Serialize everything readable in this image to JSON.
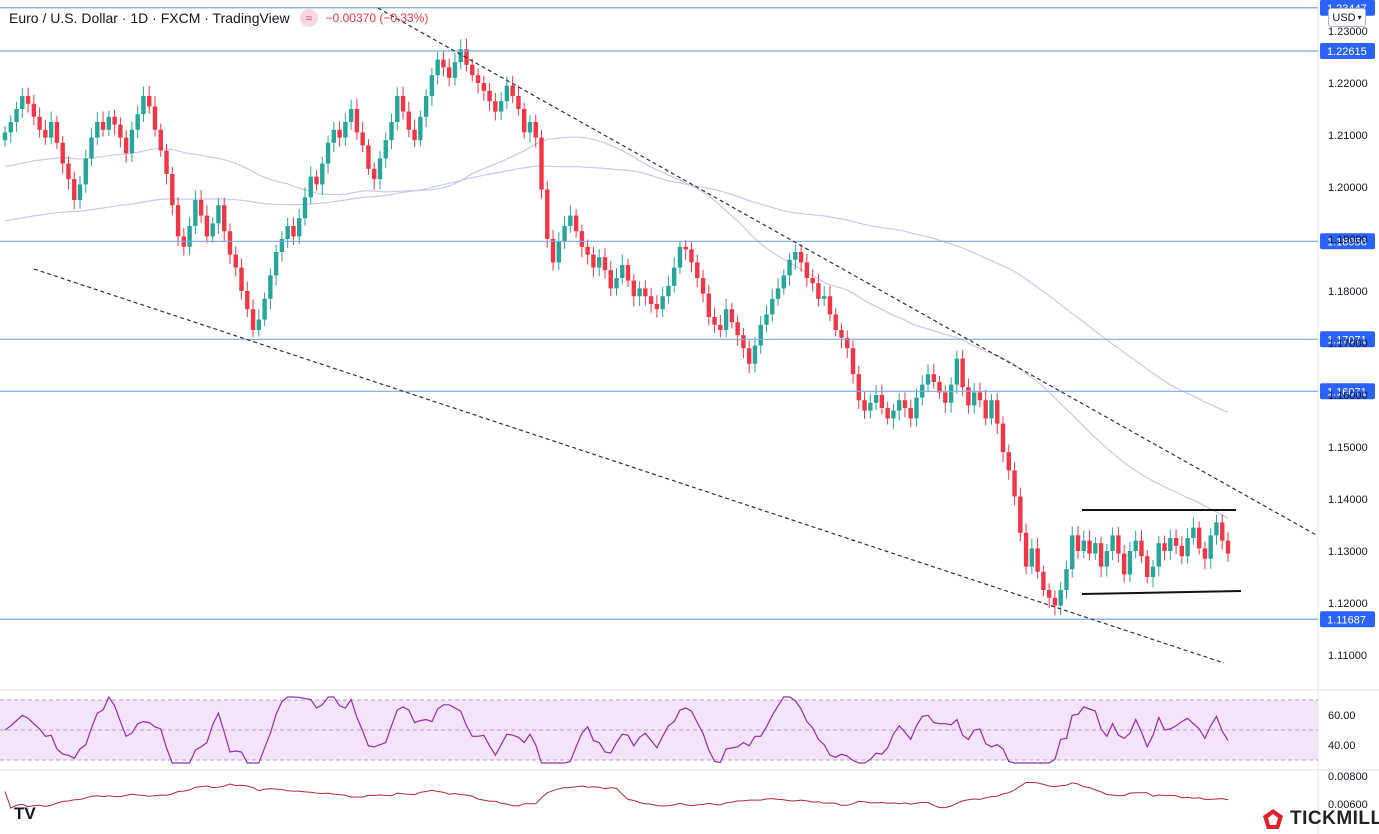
{
  "header": {
    "symbol": "Euro / U.S. Dollar · 1D · FXCM · TradingView",
    "change": "−0.00370 (−0.33%)"
  },
  "currency_selector": "USD",
  "brand": {
    "name": "TICKMILL",
    "tv_logo": "TV"
  },
  "colors": {
    "up": "#26a69a",
    "down": "#f23645",
    "hline": "#7aa7f0",
    "rsi": "#9c27b0",
    "rsi_band": "#f3e3fb",
    "indicator2": "#b22833",
    "ma": "#c7c9f0"
  },
  "chart_data": {
    "type": "candlestick",
    "price_axis": {
      "ticks": [
        1.11,
        1.12,
        1.13,
        1.14,
        1.15,
        1.16,
        1.17,
        1.18,
        1.19,
        1.2,
        1.21,
        1.22,
        1.23
      ],
      "tick_labels": [
        "1.11000",
        "1.12000",
        "1.13000",
        "1.14000",
        "1.15000",
        "1.16000",
        "1.17000",
        "1.18000",
        "1.19000",
        "1.20000",
        "1.21000",
        "1.22000",
        "1.23000"
      ],
      "range": [
        1.1033,
        1.2343
      ]
    },
    "horizontal_levels": [
      {
        "price": 1.23447,
        "label": "1.23447"
      },
      {
        "price": 1.22615,
        "label": "1.22615"
      },
      {
        "price": 1.18956,
        "label": "1.18956"
      },
      {
        "price": 1.17071,
        "label": "1.17071"
      },
      {
        "price": 1.16071,
        "label": "1.16071"
      },
      {
        "price": 1.11687,
        "label": "1.11687"
      }
    ],
    "candles_close": [
      1.2105,
      1.2125,
      1.215,
      1.2175,
      1.216,
      1.2135,
      1.211,
      1.2095,
      1.2125,
      1.2085,
      1.2045,
      1.2015,
      1.1975,
      1.2005,
      1.2055,
      1.2095,
      1.2125,
      1.211,
      1.2135,
      1.212,
      1.2095,
      1.2065,
      1.211,
      1.214,
      1.2175,
      1.2155,
      1.211,
      1.207,
      1.2025,
      1.1965,
      1.1905,
      1.1885,
      1.1925,
      1.1975,
      1.1945,
      1.1905,
      1.193,
      1.1965,
      1.1915,
      1.187,
      1.1845,
      1.18,
      1.1765,
      1.1725,
      1.1745,
      1.1785,
      1.183,
      1.1875,
      1.19,
      1.1925,
      1.1905,
      1.194,
      1.198,
      1.202,
      1.2005,
      1.2045,
      1.2085,
      1.211,
      1.2095,
      1.2125,
      1.215,
      1.2105,
      1.208,
      1.2035,
      1.2015,
      1.2055,
      1.209,
      1.2125,
      1.2175,
      1.2145,
      1.211,
      1.209,
      1.2135,
      1.2175,
      1.2215,
      1.2245,
      1.223,
      1.221,
      1.224,
      1.2265,
      1.2235,
      1.2215,
      1.22,
      1.2185,
      1.2165,
      1.2145,
      1.2165,
      1.2195,
      1.2175,
      1.215,
      1.2105,
      1.2125,
      1.2095,
      1.1995,
      1.19,
      1.1855,
      1.1895,
      1.1925,
      1.1945,
      1.1915,
      1.1885,
      1.187,
      1.1845,
      1.1865,
      1.184,
      1.1805,
      1.1825,
      1.185,
      1.182,
      1.179,
      1.1805,
      1.179,
      1.1775,
      1.1765,
      1.179,
      1.181,
      1.1845,
      1.1885,
      1.188,
      1.1855,
      1.1825,
      1.1795,
      1.175,
      1.1735,
      1.1725,
      1.1765,
      1.174,
      1.1715,
      1.169,
      1.166,
      1.1695,
      1.1735,
      1.1755,
      1.1785,
      1.1805,
      1.183,
      1.186,
      1.1875,
      1.1855,
      1.1825,
      1.1815,
      1.1785,
      1.179,
      1.1755,
      1.1725,
      1.171,
      1.169,
      1.164,
      1.159,
      1.157,
      1.1585,
      1.16,
      1.1575,
      1.1555,
      1.157,
      1.159,
      1.1575,
      1.1555,
      1.1595,
      1.162,
      1.164,
      1.1625,
      1.1605,
      1.1585,
      1.162,
      1.167,
      1.1615,
      1.158,
      1.1605,
      1.159,
      1.1555,
      1.159,
      1.1545,
      1.149,
      1.1455,
      1.1405,
      1.1335,
      1.127,
      1.1305,
      1.126,
      1.1225,
      1.121,
      1.1195,
      1.1225,
      1.1265,
      1.133,
      1.13,
      1.132,
      1.1295,
      1.1315,
      1.127,
      1.13,
      1.133,
      1.1295,
      1.1255,
      1.13,
      1.132,
      1.129,
      1.125,
      1.127,
      1.1315,
      1.13,
      1.1325,
      1.131,
      1.129,
      1.1325,
      1.1345,
      1.1305,
      1.1285,
      1.133,
      1.1355,
      1.132,
      1.1295
    ],
    "moving_average_start": [
      1.1935,
      1.204
    ],
    "trendlines": "descending channel (dashed) with a rectangle range",
    "rsi_axis": {
      "ticks": [
        40,
        60
      ],
      "tick_labels": [
        "40.00",
        "60.00"
      ]
    },
    "indicator2_axis": {
      "tick_labels": [
        "0.00800",
        "0.00600"
      ]
    }
  }
}
